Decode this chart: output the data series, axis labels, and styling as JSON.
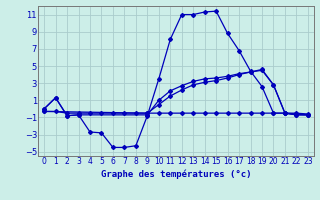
{
  "title": "Graphe des températures (°c)",
  "background_color": "#cceee8",
  "grid_color": "#aacccc",
  "line_color": "#0000bb",
  "xlim": [
    -0.5,
    23.5
  ],
  "ylim": [
    -5.5,
    12
  ],
  "yticks": [
    -5,
    -3,
    -1,
    1,
    3,
    5,
    7,
    9,
    11
  ],
  "xticks": [
    0,
    1,
    2,
    3,
    4,
    5,
    6,
    7,
    8,
    9,
    10,
    11,
    12,
    13,
    14,
    15,
    16,
    17,
    18,
    19,
    20,
    21,
    22,
    23
  ],
  "line1_x": [
    0,
    1,
    2,
    3,
    4,
    5,
    6,
    7,
    8,
    9,
    10,
    11,
    12,
    13,
    14,
    15,
    16,
    17,
    18,
    19,
    20,
    21,
    22,
    23
  ],
  "line1_y": [
    0,
    1.3,
    -0.8,
    -0.7,
    -2.7,
    -2.8,
    -4.5,
    -4.5,
    -4.3,
    -0.8,
    3.5,
    8.1,
    11.0,
    11.0,
    11.3,
    11.4,
    8.8,
    6.8,
    4.4,
    2.6,
    -0.5,
    -0.5,
    -0.7,
    -0.7
  ],
  "line2_x": [
    0,
    1,
    2,
    3,
    4,
    5,
    6,
    7,
    8,
    9,
    10,
    11,
    12,
    13,
    14,
    15,
    16,
    17,
    18,
    19,
    20,
    21,
    22,
    23
  ],
  "line2_y": [
    -0.3,
    -0.3,
    -0.5,
    -0.5,
    -0.5,
    -0.5,
    -0.5,
    -0.5,
    -0.5,
    -0.5,
    -0.5,
    -0.5,
    -0.5,
    -0.5,
    -0.5,
    -0.5,
    -0.5,
    -0.5,
    -0.5,
    -0.5,
    -0.5,
    -0.5,
    -0.5,
    -0.6
  ],
  "line3_x": [
    0,
    1,
    2,
    3,
    9,
    10,
    11,
    12,
    13,
    14,
    15,
    16,
    17,
    18,
    19,
    20,
    21,
    22,
    23
  ],
  "line3_y": [
    0,
    1.3,
    -0.8,
    -0.7,
    -0.7,
    1.0,
    2.1,
    2.7,
    3.2,
    3.5,
    3.6,
    3.8,
    4.1,
    4.3,
    4.5,
    2.8,
    -0.5,
    -0.7,
    -0.7
  ],
  "line4_x": [
    0,
    9,
    10,
    11,
    12,
    13,
    14,
    15,
    16,
    17,
    18,
    19,
    20,
    21,
    22,
    23
  ],
  "line4_y": [
    -0.3,
    -0.5,
    0.5,
    1.5,
    2.2,
    2.8,
    3.1,
    3.3,
    3.6,
    4.0,
    4.3,
    4.6,
    2.8,
    -0.5,
    -0.6,
    -0.7
  ]
}
